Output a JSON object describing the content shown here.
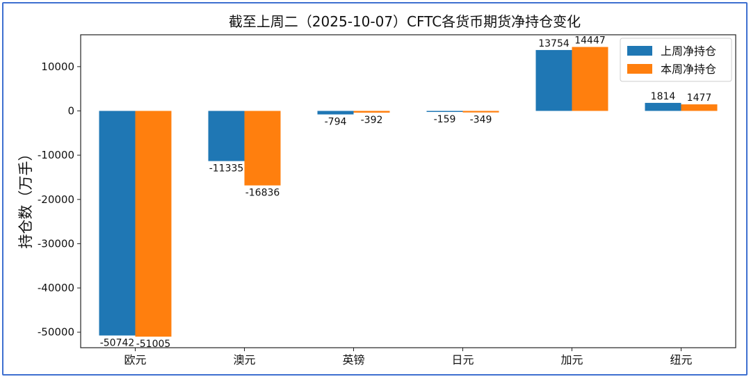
{
  "chart_data": {
    "type": "bar",
    "title": "截至上周二（2025-10-07）CFTC各货币期货净持仓变化",
    "xlabel": "",
    "ylabel": "持仓数（万手）",
    "categories": [
      "欧元",
      "澳元",
      "英镑",
      "日元",
      "加元",
      "纽元"
    ],
    "series": [
      {
        "name": "上周净持仓",
        "color": "#1f77b4",
        "values": [
          -50742,
          -11335,
          -794,
          -159,
          13754,
          1814
        ]
      },
      {
        "name": "本周净持仓",
        "color": "#ff7f0e",
        "values": [
          -51005,
          -16836,
          -392,
          -349,
          14447,
          1477
        ]
      }
    ],
    "ylim": [
      -53500,
      17200
    ],
    "yticks": [
      10000,
      0,
      -10000,
      -20000,
      -30000,
      -40000,
      -50000
    ],
    "grid": false,
    "legend_position": "top-right",
    "data_labels": true
  }
}
